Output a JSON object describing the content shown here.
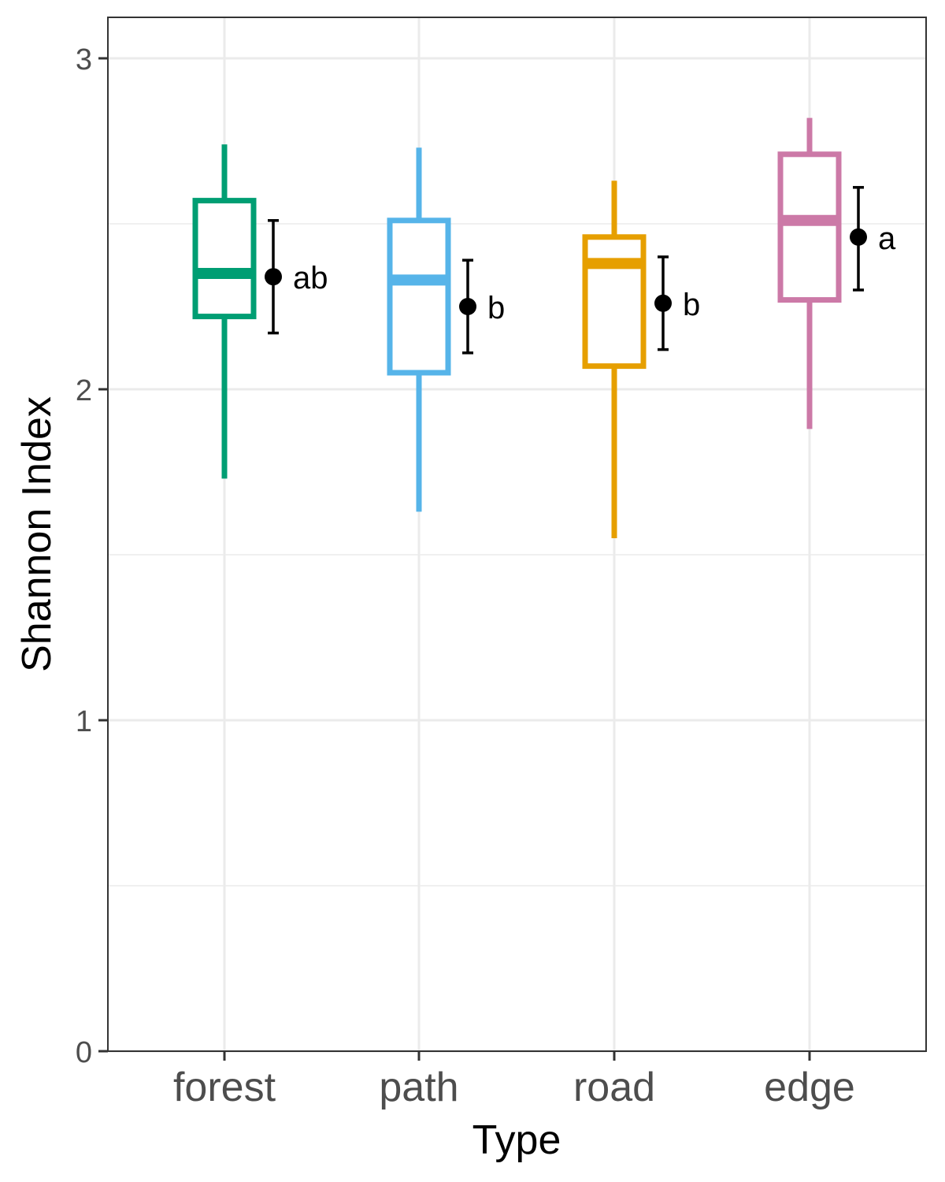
{
  "chart_data": {
    "type": "box",
    "xlabel": "Type",
    "ylabel": "Shannon Index",
    "ylim": [
      0,
      3.13
    ],
    "yticks": [
      0,
      1,
      2,
      3
    ],
    "grid": true,
    "categories": [
      "forest",
      "path",
      "road",
      "edge"
    ],
    "boxes": [
      {
        "category": "forest",
        "min": 1.73,
        "q1": 2.22,
        "median": 2.35,
        "q3": 2.57,
        "max": 2.74,
        "color": "#009E73"
      },
      {
        "category": "path",
        "min": 1.63,
        "q1": 2.05,
        "median": 2.33,
        "q3": 2.51,
        "max": 2.73,
        "color": "#56B4E9"
      },
      {
        "category": "road",
        "min": 1.55,
        "q1": 2.07,
        "median": 2.38,
        "q3": 2.46,
        "max": 2.63,
        "color": "#E69F00"
      },
      {
        "category": "edge",
        "min": 1.88,
        "q1": 2.27,
        "median": 2.51,
        "q3": 2.71,
        "max": 2.82,
        "color": "#CC79A7"
      }
    ],
    "means": [
      {
        "category": "forest",
        "mean": 2.34,
        "lower": 2.17,
        "upper": 2.51,
        "letter": "ab"
      },
      {
        "category": "path",
        "mean": 2.25,
        "lower": 2.11,
        "upper": 2.39,
        "letter": "b"
      },
      {
        "category": "road",
        "mean": 2.26,
        "lower": 2.12,
        "upper": 2.4,
        "letter": "b"
      },
      {
        "category": "edge",
        "mean": 2.46,
        "lower": 2.3,
        "upper": 2.61,
        "letter": "a"
      }
    ]
  }
}
